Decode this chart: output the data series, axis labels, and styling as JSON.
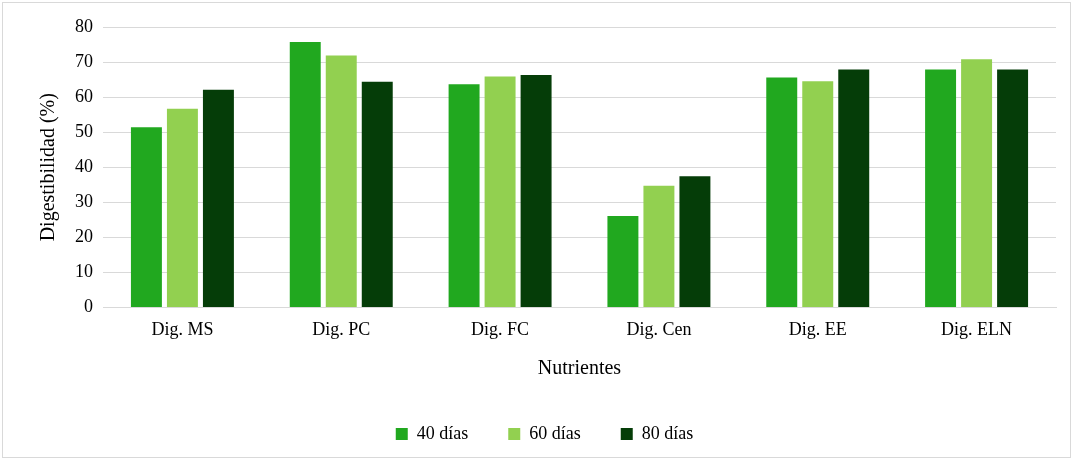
{
  "chart_data": {
    "type": "bar",
    "xlabel": "Nutrientes",
    "ylabel": "Digestibilidad (%)",
    "categories": [
      "Dig. MS",
      "Dig. PC",
      "Dig. FC",
      "Dig. Cen",
      "Dig. EE",
      "Dig. ELN"
    ],
    "series": [
      {
        "name": "40 días",
        "color": "#21a81f",
        "values": [
          51.4,
          75.7,
          63.7,
          26.1,
          65.6,
          67.9
        ]
      },
      {
        "name": "60 días",
        "color": "#92d050",
        "values": [
          56.7,
          71.9,
          65.9,
          34.7,
          64.5,
          70.8
        ]
      },
      {
        "name": "80 días",
        "color": "#053d08",
        "values": [
          62.1,
          64.4,
          66.3,
          37.4,
          67.9,
          67.9
        ]
      }
    ],
    "ylim": [
      0,
      80
    ],
    "yticks": [
      0,
      10,
      20,
      30,
      40,
      50,
      60,
      70,
      80
    ],
    "grid": "y",
    "legend": "bottom"
  }
}
